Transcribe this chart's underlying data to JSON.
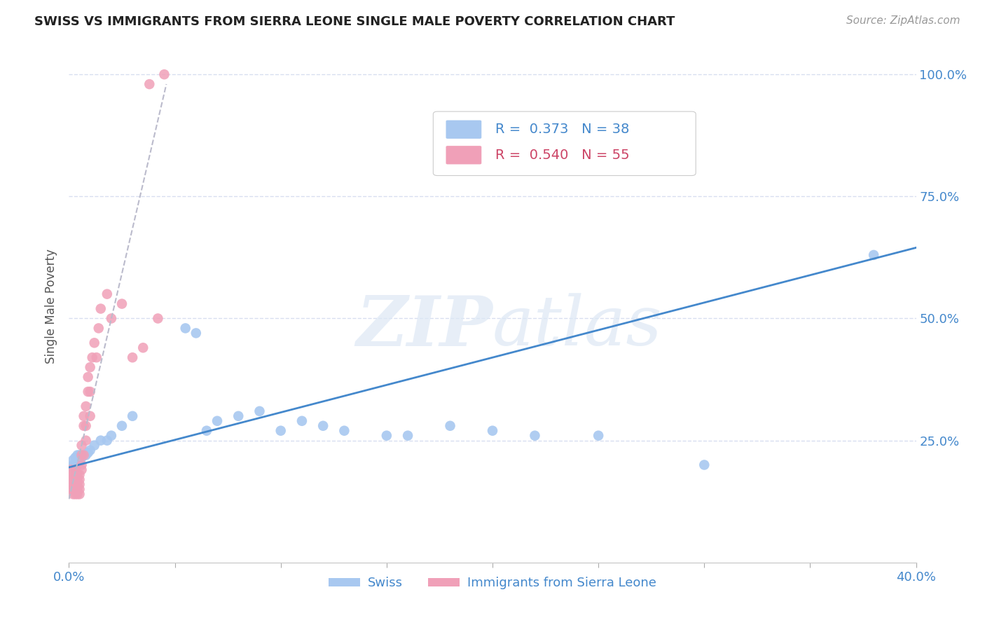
{
  "title": "SWISS VS IMMIGRANTS FROM SIERRA LEONE SINGLE MALE POVERTY CORRELATION CHART",
  "source": "Source: ZipAtlas.com",
  "ylabel": "Single Male Poverty",
  "watermark": "ZIPatlas",
  "x_min": 0.0,
  "x_max": 0.4,
  "y_min": 0.0,
  "y_max": 1.05,
  "swiss_color": "#a8c8f0",
  "sierra_color": "#f0a0b8",
  "swiss_line_color": "#4488cc",
  "sierra_line_color": "#cc4466",
  "swiss_R": 0.373,
  "swiss_N": 38,
  "sierra_R": 0.54,
  "sierra_N": 55,
  "grid_color": "#d8dff0",
  "background_color": "#ffffff",
  "swiss_x": [
    0.001,
    0.002,
    0.002,
    0.003,
    0.003,
    0.004,
    0.004,
    0.005,
    0.005,
    0.006,
    0.007,
    0.008,
    0.009,
    0.01,
    0.012,
    0.015,
    0.018,
    0.02,
    0.025,
    0.03,
    0.055,
    0.06,
    0.065,
    0.07,
    0.08,
    0.09,
    0.1,
    0.11,
    0.12,
    0.13,
    0.15,
    0.16,
    0.18,
    0.2,
    0.22,
    0.25,
    0.3,
    0.38
  ],
  "swiss_y": [
    0.195,
    0.2,
    0.21,
    0.195,
    0.215,
    0.2,
    0.22,
    0.205,
    0.22,
    0.215,
    0.22,
    0.22,
    0.225,
    0.23,
    0.24,
    0.25,
    0.25,
    0.26,
    0.28,
    0.3,
    0.48,
    0.47,
    0.27,
    0.29,
    0.3,
    0.31,
    0.27,
    0.29,
    0.28,
    0.27,
    0.26,
    0.26,
    0.28,
    0.27,
    0.26,
    0.26,
    0.2,
    0.63
  ],
  "sierra_x": [
    0.001,
    0.001,
    0.001,
    0.001,
    0.001,
    0.002,
    0.002,
    0.002,
    0.002,
    0.002,
    0.002,
    0.003,
    0.003,
    0.003,
    0.003,
    0.003,
    0.003,
    0.004,
    0.004,
    0.004,
    0.004,
    0.004,
    0.005,
    0.005,
    0.005,
    0.005,
    0.005,
    0.006,
    0.006,
    0.006,
    0.006,
    0.007,
    0.007,
    0.007,
    0.008,
    0.008,
    0.008,
    0.009,
    0.009,
    0.01,
    0.01,
    0.01,
    0.011,
    0.012,
    0.013,
    0.014,
    0.015,
    0.018,
    0.02,
    0.025,
    0.03,
    0.035,
    0.038,
    0.042,
    0.045
  ],
  "sierra_y": [
    0.18,
    0.19,
    0.17,
    0.16,
    0.15,
    0.17,
    0.18,
    0.16,
    0.17,
    0.15,
    0.14,
    0.17,
    0.18,
    0.19,
    0.16,
    0.15,
    0.14,
    0.16,
    0.17,
    0.18,
    0.15,
    0.14,
    0.17,
    0.18,
    0.16,
    0.15,
    0.14,
    0.2,
    0.22,
    0.24,
    0.19,
    0.22,
    0.28,
    0.3,
    0.25,
    0.28,
    0.32,
    0.35,
    0.38,
    0.3,
    0.35,
    0.4,
    0.42,
    0.45,
    0.42,
    0.48,
    0.52,
    0.55,
    0.5,
    0.53,
    0.42,
    0.44,
    0.98,
    0.5,
    1.0
  ],
  "swiss_trend_x": [
    0.0,
    0.4
  ],
  "swiss_trend_y": [
    0.195,
    0.645
  ],
  "sierra_trend_x": [
    0.0,
    0.046
  ],
  "sierra_trend_y": [
    0.13,
    0.98
  ]
}
